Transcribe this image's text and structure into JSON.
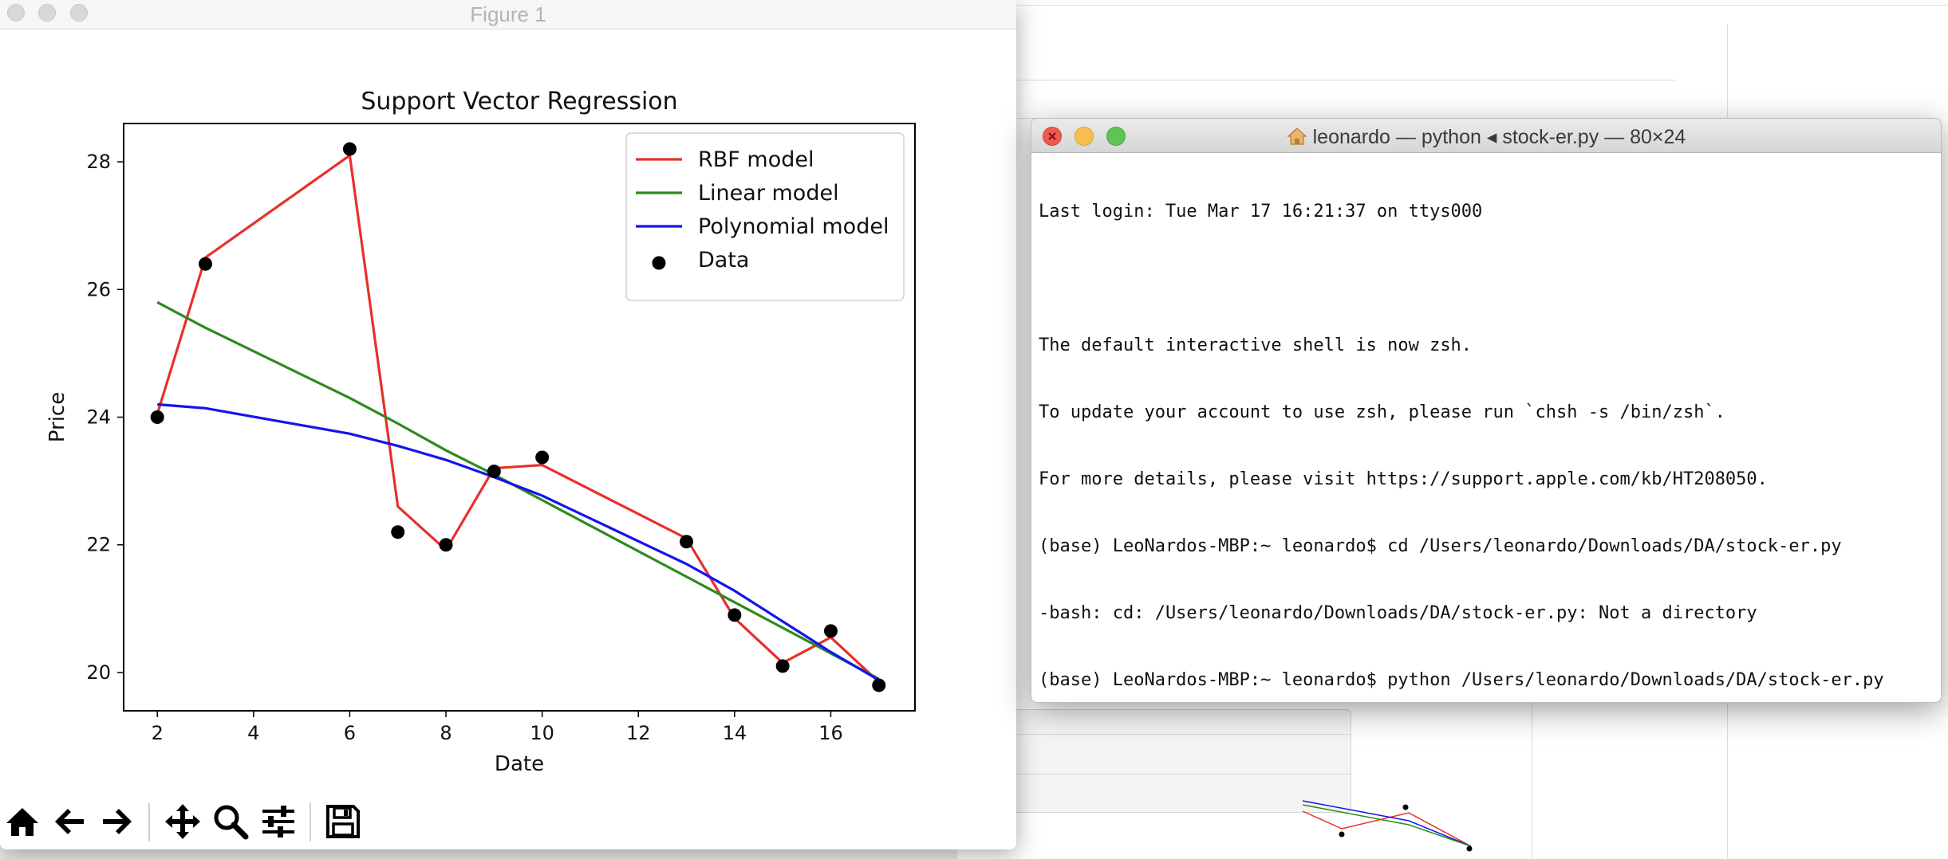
{
  "figure_window": {
    "title": "Figure 1"
  },
  "chart_data": {
    "type": "line",
    "title": "Support Vector Regression",
    "xlabel": "Date",
    "ylabel": "Price",
    "xlim": [
      1.3,
      17.75
    ],
    "ylim": [
      19.4,
      28.6
    ],
    "xticks": [
      2,
      4,
      6,
      8,
      10,
      12,
      14,
      16
    ],
    "yticks": [
      20,
      22,
      24,
      26,
      28
    ],
    "grid": false,
    "legend_position": "top-right",
    "colors": {
      "rbf": "#e8302a",
      "linear": "#2e8a1e",
      "poly": "#1414f0",
      "data": "#000000"
    },
    "x": [
      2,
      3,
      6,
      7,
      8,
      9,
      10,
      13,
      14,
      15,
      16,
      17
    ],
    "scatter": {
      "name": "Data",
      "y": [
        24.0,
        26.4,
        28.2,
        22.2,
        22.0,
        23.15,
        23.37,
        22.05,
        20.9,
        20.1,
        20.65,
        19.8
      ]
    },
    "series": [
      {
        "name": "RBF model",
        "key": "rbf",
        "y": [
          24.05,
          26.5,
          28.1,
          22.6,
          21.92,
          23.2,
          23.25,
          22.1,
          20.85,
          20.15,
          20.55,
          19.85
        ]
      },
      {
        "name": "Linear model",
        "key": "linear",
        "y": [
          25.8,
          25.4,
          24.3,
          23.9,
          23.48,
          23.1,
          22.7,
          21.5,
          21.1,
          20.7,
          20.3,
          19.9
        ]
      },
      {
        "name": "Polynomial model",
        "key": "poly",
        "y": [
          24.2,
          24.14,
          23.74,
          23.55,
          23.33,
          23.06,
          22.77,
          21.7,
          21.28,
          20.8,
          20.32,
          19.88
        ]
      }
    ]
  },
  "toolbar": {
    "buttons": [
      "home-icon",
      "back-icon",
      "forward-icon",
      "pan-icon",
      "zoom-icon",
      "configure-icon",
      "save-icon"
    ]
  },
  "terminal": {
    "title": "leonardo — python ◂ stock-er.py — 80×24",
    "lines": [
      "Last login: Tue Mar 17 16:21:37 on ttys000",
      "",
      "The default interactive shell is now zsh.",
      "To update your account to use zsh, please run `chsh -s /bin/zsh`.",
      "For more details, please visit https://support.apple.com/kb/HT208050.",
      "(base) LeoNardos-MBP:~ leonardo$ cd /Users/leonardo/Downloads/DA/stock-er.py",
      "-bash: cd: /Users/leonardo/Downloads/DA/stock-er.py: Not a directory",
      "(base) LeoNardos-MBP:~ leonardo$ python /Users/leonardo/Downloads/DA/stock-er.py"
    ]
  }
}
